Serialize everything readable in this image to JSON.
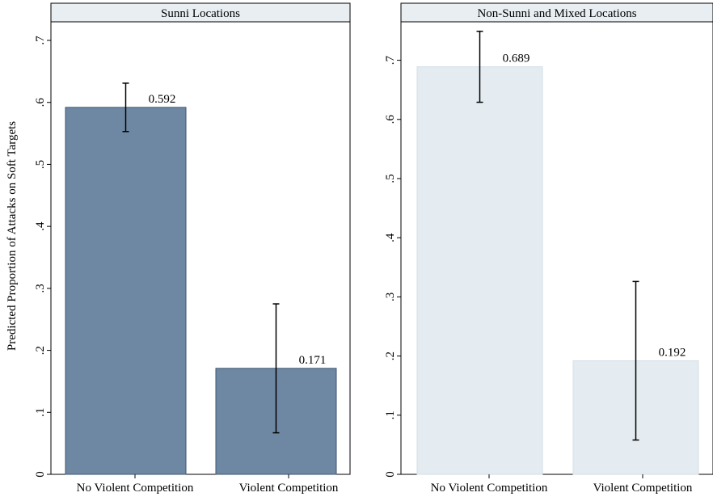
{
  "ylabel": "Predicted Proportion of Attacks on Soft Targets",
  "chart_data": [
    {
      "type": "bar",
      "title": "Sunni Locations",
      "categories": [
        "No Violent Competition",
        "Violent Competition"
      ],
      "values": [
        0.592,
        0.171
      ],
      "value_labels": [
        "0.592",
        "0.171"
      ],
      "ci_low": [
        0.553,
        0.067
      ],
      "ci_high": [
        0.631,
        0.275
      ],
      "ylim": [
        0,
        0.73
      ],
      "yticks": [
        0,
        0.1,
        0.2,
        0.3,
        0.4,
        0.5,
        0.6,
        0.7
      ],
      "ytick_labels": [
        "0",
        ".1",
        ".2",
        ".3",
        ".4",
        ".5",
        ".6",
        ".7"
      ],
      "bar_color": "#6e88a3",
      "bar_edge": "#3d5670",
      "grid": false,
      "legend": "none"
    },
    {
      "type": "bar",
      "title": "Non-Sunni and Mixed Locations",
      "categories": [
        "No Violent Competition",
        "Violent Competition"
      ],
      "values": [
        0.689,
        0.192
      ],
      "value_labels": [
        "0.689",
        "0.192"
      ],
      "ci_low": [
        0.629,
        0.058
      ],
      "ci_high": [
        0.749,
        0.326
      ],
      "ylim": [
        0,
        0.765
      ],
      "yticks": [
        0,
        0.1,
        0.2,
        0.3,
        0.4,
        0.5,
        0.6,
        0.7
      ],
      "ytick_labels": [
        "0",
        ".1",
        ".2",
        ".3",
        ".4",
        ".5",
        ".6",
        ".7"
      ],
      "bar_color": "#e4ecf1",
      "bar_edge": "#d3dfe6",
      "grid": false,
      "legend": "none"
    }
  ]
}
